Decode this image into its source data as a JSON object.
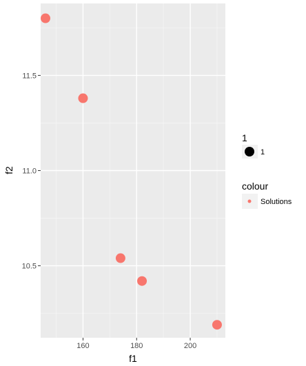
{
  "chart_data": {
    "type": "scatter",
    "xlabel": "f1",
    "ylabel": "f2",
    "xlim": [
      144.2,
      213.1
    ],
    "ylim": [
      10.122,
      11.878
    ],
    "x_ticks": [
      160,
      180,
      200
    ],
    "x_tick_labels": [
      "160",
      "180",
      "200"
    ],
    "y_ticks": [
      10.5,
      11.0,
      11.5
    ],
    "y_tick_labels": [
      "10.5",
      "11.0",
      "11.5"
    ],
    "grid": true,
    "series": [
      {
        "name": "Solutions",
        "color": "#f8766d",
        "points": [
          {
            "x": 146.0,
            "y": 11.8
          },
          {
            "x": 160.0,
            "y": 11.38
          },
          {
            "x": 174.0,
            "y": 10.54
          },
          {
            "x": 182.0,
            "y": 10.42
          },
          {
            "x": 210.0,
            "y": 10.19
          }
        ]
      }
    ],
    "legend": {
      "placement": "right",
      "groups": [
        {
          "title": "1",
          "entries": [
            {
              "label": "1",
              "color": "#000000",
              "shape": "large-dot"
            }
          ]
        },
        {
          "title": "colour",
          "entries": [
            {
              "label": "Solutions",
              "color": "#f8766d",
              "shape": "small-dot"
            }
          ]
        }
      ]
    }
  },
  "colors": {
    "panel_background": "#ebebeb",
    "grid_major": "#ffffff",
    "grid_minor": "#f5f5f5",
    "point": "#f8766d"
  }
}
